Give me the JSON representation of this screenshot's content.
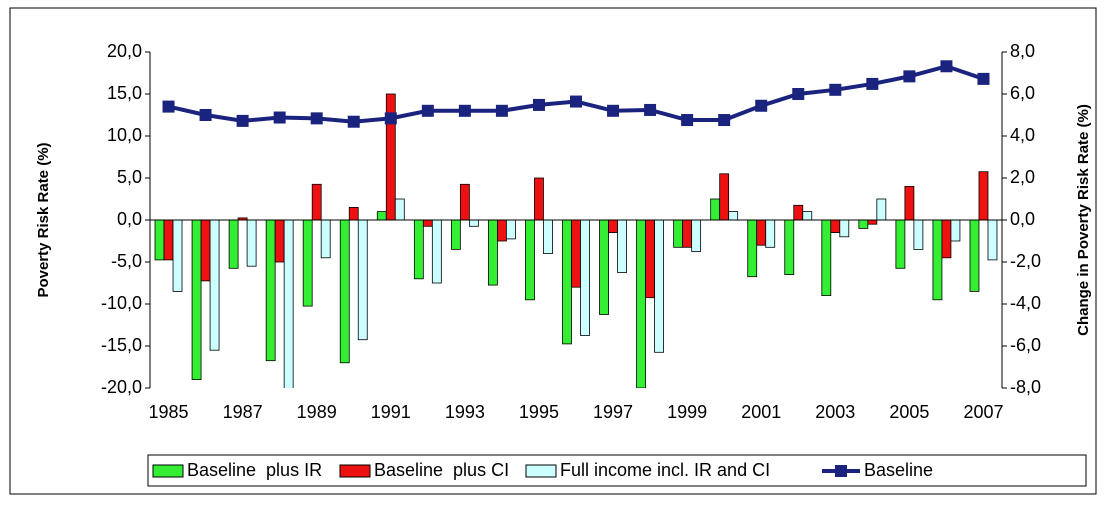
{
  "chart_data": {
    "type": "bar_line",
    "y_label": "Poverty Risk Rate (%)",
    "y2_label": "Change in Poverty Risk Rate (%)",
    "categories": [
      "1985",
      null,
      "1987",
      null,
      "1989",
      null,
      "1991",
      null,
      "1993",
      null,
      "1995",
      null,
      "1997",
      null,
      "1999",
      null,
      "2001",
      null,
      "2003",
      null,
      "2005",
      null,
      "2007"
    ],
    "ylim": [
      -20,
      20
    ],
    "yticks": [
      {
        "value": -20,
        "label": "-20,0"
      },
      {
        "value": -15,
        "label": "-15,0"
      },
      {
        "value": -10,
        "label": "-10,0"
      },
      {
        "value": -5,
        "label": "-5,0"
      },
      {
        "value": 0,
        "label": "0,0"
      },
      {
        "value": 5,
        "label": "5,0"
      },
      {
        "value": 10,
        "label": "10,0"
      },
      {
        "value": 15,
        "label": "15,0"
      },
      {
        "value": 20,
        "label": "20,0"
      }
    ],
    "y2lim": [
      -8,
      8
    ],
    "y2ticks": [
      {
        "value": -8,
        "label": "-8,0"
      },
      {
        "value": -6,
        "label": "-6,0"
      },
      {
        "value": -4,
        "label": "-4,0"
      },
      {
        "value": -2,
        "label": "-2,0"
      },
      {
        "value": 0,
        "label": "0,0"
      },
      {
        "value": 2,
        "label": "2,0"
      },
      {
        "value": 4,
        "label": "4,0"
      },
      {
        "value": 6,
        "label": "6,0"
      },
      {
        "value": 8,
        "label": "8,0"
      }
    ],
    "series": [
      {
        "name": "Baseline  plus IR",
        "type": "bar",
        "axis": "y2",
        "color": "#33ee33",
        "values": [
          -1.9,
          -7.6,
          -2.3,
          -6.7,
          -4.1,
          -6.8,
          0.4,
          -2.8,
          -1.4,
          -3.1,
          -3.8,
          -5.9,
          -4.5,
          -8.0,
          -1.3,
          1.0,
          -2.7,
          -2.6,
          -3.6,
          -0.4,
          -2.3,
          -3.8,
          -3.4
        ]
      },
      {
        "name": "Baseline  plus CI",
        "type": "bar",
        "axis": "y2",
        "color": "#ee1111",
        "values": [
          -1.9,
          -2.9,
          0.1,
          -2.0,
          1.7,
          0.6,
          6.0,
          -0.3,
          1.7,
          -1.0,
          2.0,
          -3.2,
          -0.6,
          -3.7,
          -1.3,
          2.2,
          -1.2,
          0.7,
          -0.6,
          -0.2,
          1.6,
          -1.8,
          2.3
        ]
      },
      {
        "name": "Full income incl. IR and CI",
        "type": "bar",
        "axis": "y2",
        "color": "#ccffff",
        "values": [
          -3.4,
          -6.2,
          -2.2,
          -8.4,
          -1.8,
          -5.7,
          1.0,
          -3.0,
          -0.3,
          -0.9,
          -1.6,
          -5.5,
          -2.5,
          -6.3,
          -1.5,
          0.4,
          -1.3,
          0.4,
          -0.8,
          1.0,
          -1.4,
          -1.0,
          -1.9
        ]
      },
      {
        "name": "Baseline",
        "type": "line",
        "color": "#1a237e",
        "values": [
          13.5,
          12.5,
          11.8,
          12.2,
          12.1,
          11.7,
          12.1,
          13.0,
          13.0,
          13.0,
          13.7,
          14.1,
          13.0,
          13.1,
          11.9,
          11.9,
          13.6,
          15.0,
          15.5,
          16.2,
          17.1,
          18.3,
          16.8
        ]
      }
    ]
  }
}
